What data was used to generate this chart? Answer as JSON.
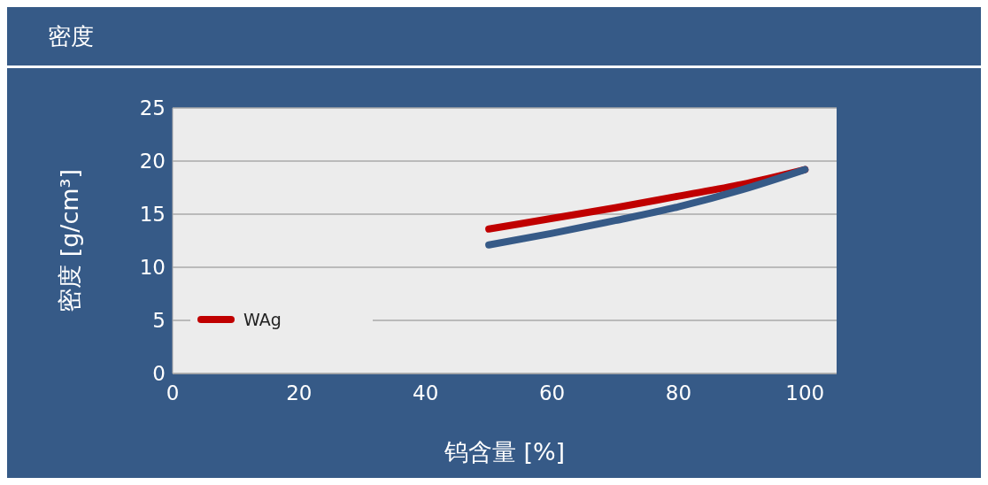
{
  "chart_data": {
    "type": "line",
    "title": "密度",
    "xlabel": "钨含量 [%]",
    "ylabel": "密度 [g/cm³]",
    "xlim": [
      0,
      105
    ],
    "xticks": [
      0,
      20,
      40,
      60,
      80,
      100
    ],
    "ylim": [
      0,
      25
    ],
    "yticks": [
      0,
      5,
      10,
      15,
      20,
      25
    ],
    "grid": "y",
    "legend": "bottom left",
    "marker": "none",
    "line_style": "solid",
    "series": [
      {
        "name": "WAg",
        "color": "#c00000",
        "x": [
          50,
          60,
          70,
          80,
          90,
          100
        ],
        "values": [
          13.6,
          14.6,
          15.6,
          16.7,
          17.8,
          19.2
        ]
      },
      {
        "color": "#365a87",
        "x": [
          50,
          60,
          70,
          80,
          90,
          100
        ],
        "values": [
          12.1,
          13.2,
          14.4,
          15.7,
          17.3,
          19.2
        ]
      }
    ]
  }
}
